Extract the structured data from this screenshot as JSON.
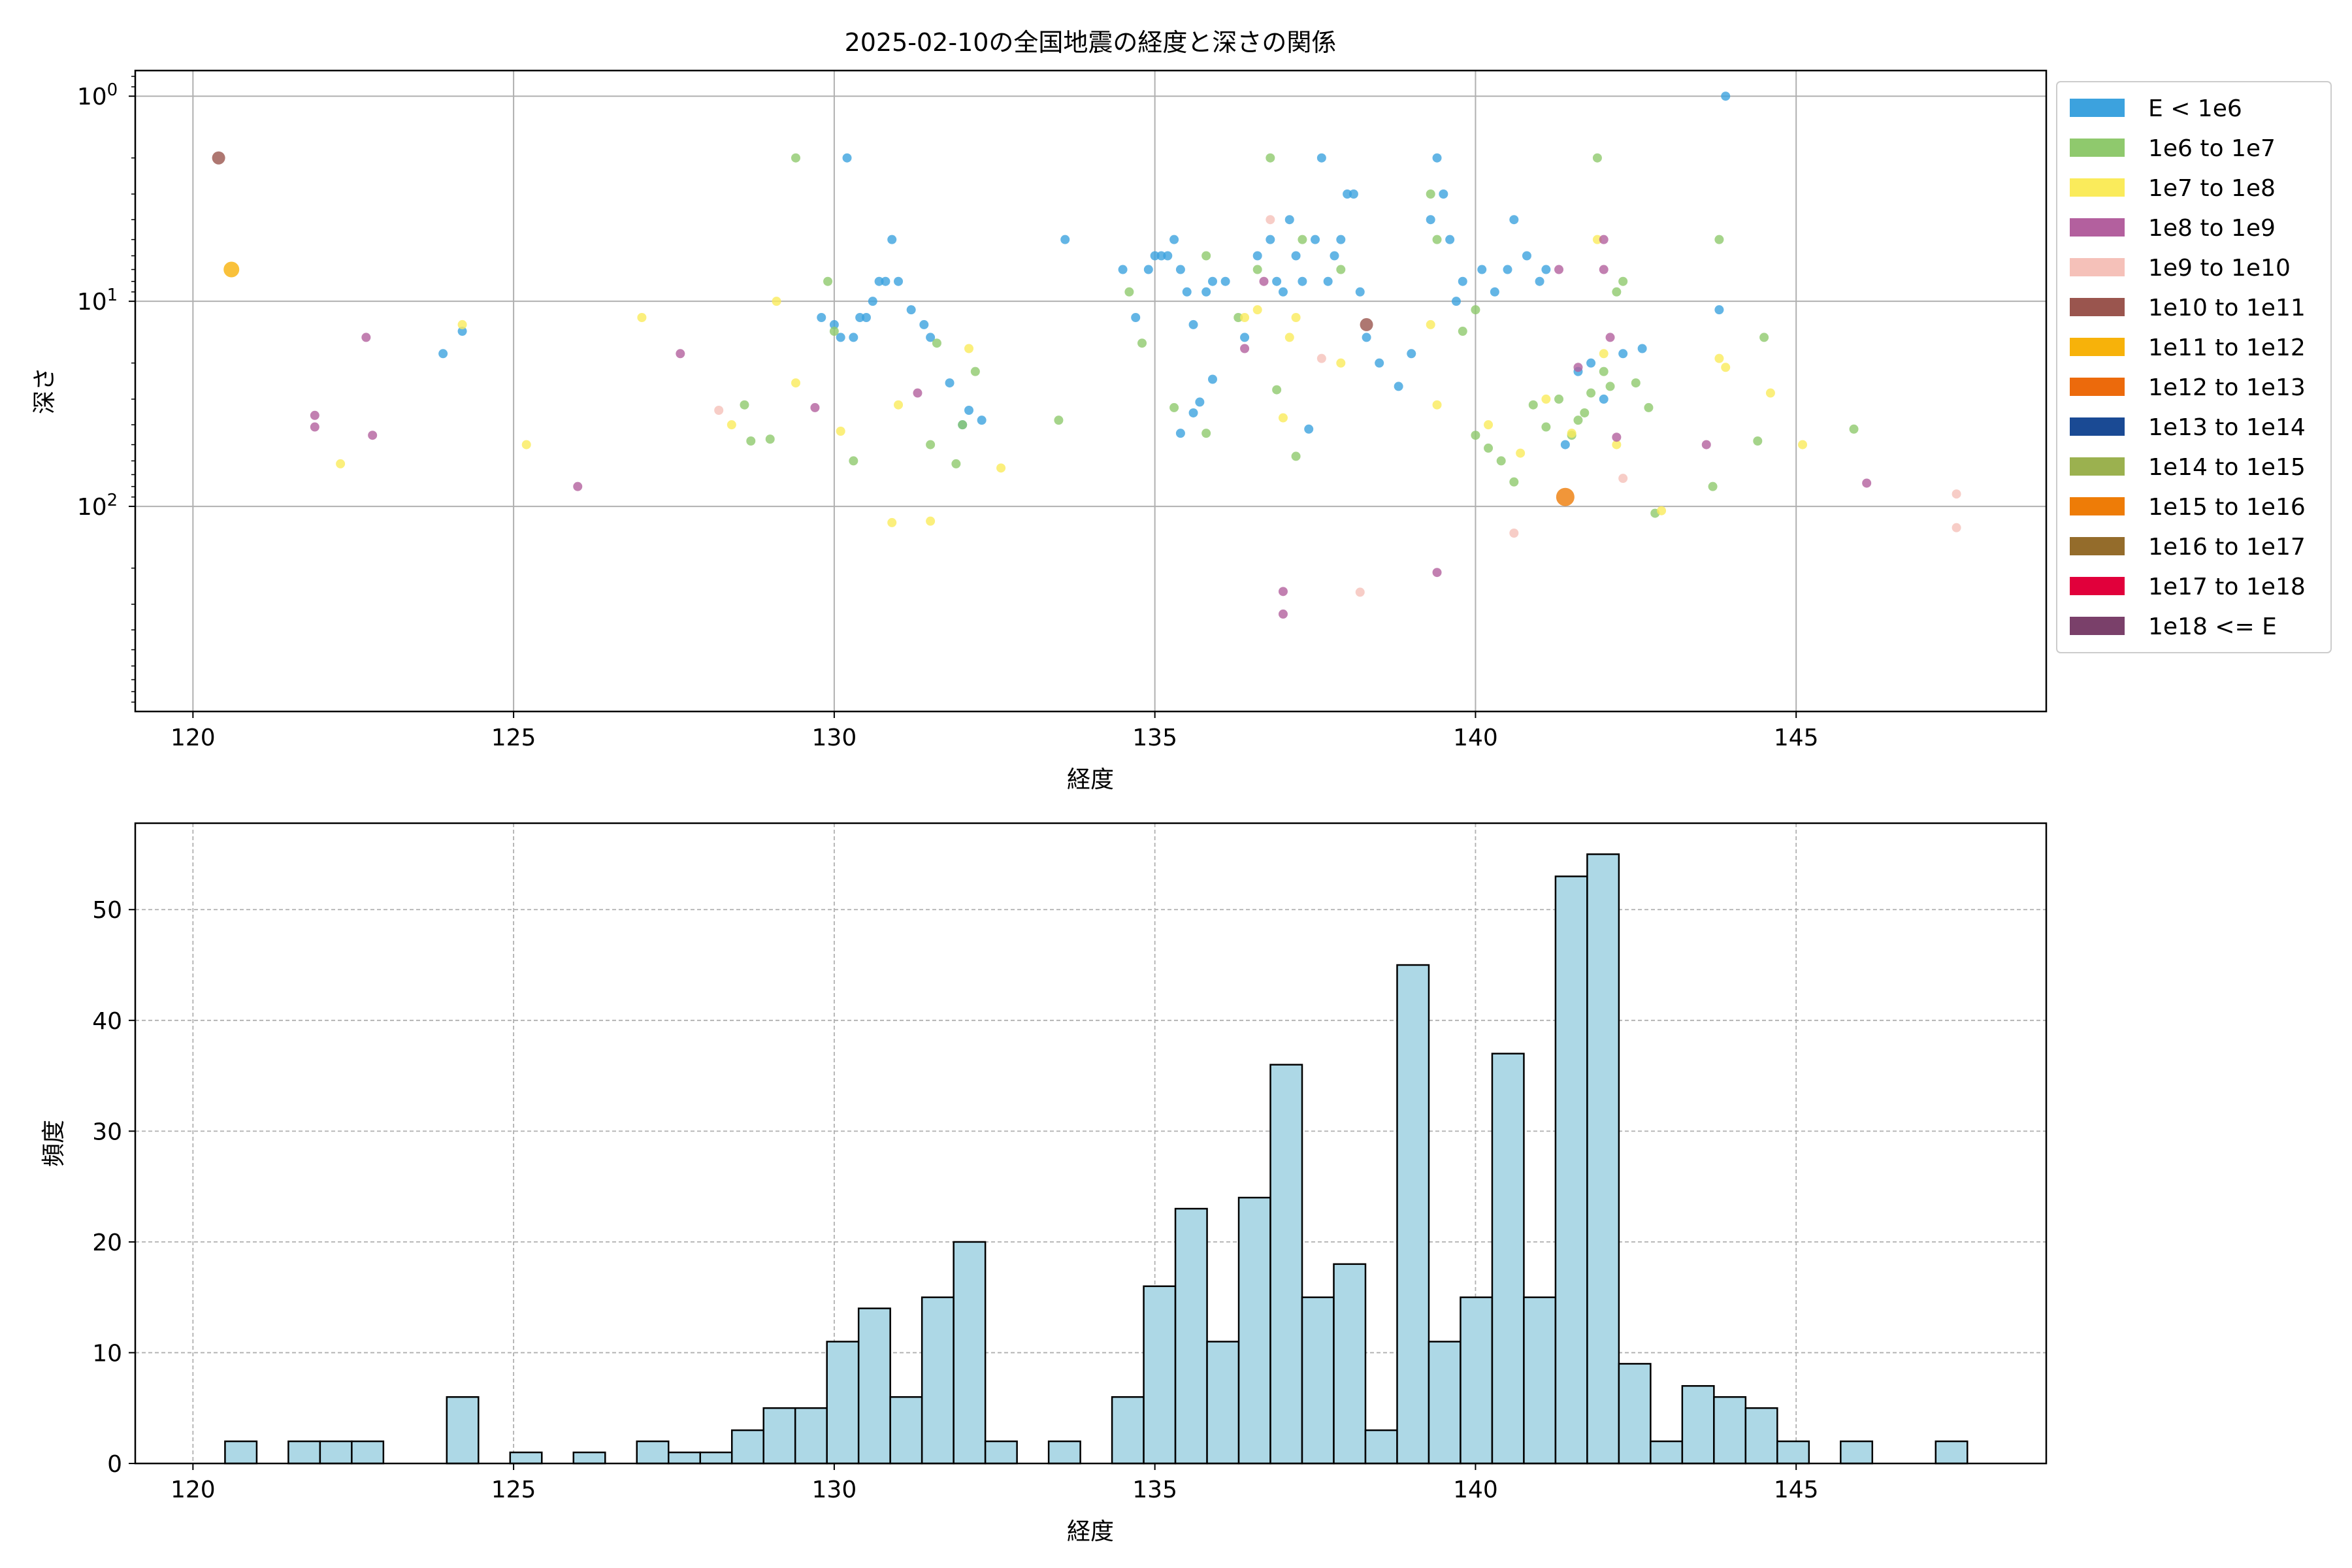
{
  "chart_data": [
    {
      "type": "scatter",
      "title": "2025-02-10の全国地震の経度と深さの関係",
      "xlabel": "経度",
      "ylabel": "深さ",
      "xlim": [
        119.1,
        148.9
      ],
      "ylim": [
        1000,
        0.75
      ],
      "yscale": "log",
      "y_inverted": true,
      "xticks": [
        120,
        125,
        130,
        135,
        140,
        145
      ],
      "xtick_labels": [
        "120",
        "125",
        "130",
        "135",
        "140",
        "145"
      ],
      "yticks": [
        1,
        10,
        100
      ],
      "ytick_labels": [
        "10^0",
        "10^1",
        "10^2"
      ],
      "grid": true,
      "legend_position": "outside-right",
      "legend": [
        {
          "label": "E < 1e6",
          "color": "#3ca2de"
        },
        {
          "label": "1e6 to 1e7",
          "color": "#8fc96d"
        },
        {
          "label": "1e7 to 1e8",
          "color": "#faeb5b"
        },
        {
          "label": "1e8 to 1e9",
          "color": "#b3609e"
        },
        {
          "label": "1e9 to 1e10",
          "color": "#f5c1b9"
        },
        {
          "label": "1e10 to 1e11",
          "color": "#9a554e"
        },
        {
          "label": "1e11 to 1e12",
          "color": "#f7b20a"
        },
        {
          "label": "1e12 to 1e13",
          "color": "#ec6a0c"
        },
        {
          "label": "1e13 to 1e14",
          "color": "#1a4a94"
        },
        {
          "label": "1e14 to 1e15",
          "color": "#9bb14f"
        },
        {
          "label": "1e15 to 1e16",
          "color": "#ee7c07"
        },
        {
          "label": "1e16 to 1e17",
          "color": "#946c2b"
        },
        {
          "label": "1e17 to 1e18",
          "color": "#e1003b"
        },
        {
          "label": "1e18 <= E",
          "color": "#7a406a"
        }
      ],
      "series": [
        {
          "name": "E < 1e6",
          "color": "#3ca2de",
          "points": [
            [
              123.9,
              18
            ],
            [
              124.2,
              14
            ],
            [
              129.8,
              12
            ],
            [
              130.0,
              13
            ],
            [
              130.1,
              15
            ],
            [
              130.2,
              2
            ],
            [
              130.3,
              15
            ],
            [
              130.4,
              12
            ],
            [
              130.5,
              12
            ],
            [
              130.6,
              10
            ],
            [
              130.7,
              8
            ],
            [
              130.8,
              8
            ],
            [
              130.9,
              5
            ],
            [
              131.0,
              8
            ],
            [
              131.2,
              11
            ],
            [
              131.4,
              13
            ],
            [
              131.5,
              15
            ],
            [
              131.8,
              25
            ],
            [
              132.0,
              40
            ],
            [
              132.1,
              34
            ],
            [
              132.3,
              38
            ],
            [
              133.6,
              5
            ],
            [
              134.5,
              7
            ],
            [
              134.7,
              12
            ],
            [
              134.9,
              7
            ],
            [
              135.0,
              6
            ],
            [
              135.1,
              6
            ],
            [
              135.2,
              6
            ],
            [
              135.3,
              5
            ],
            [
              135.4,
              7
            ],
            [
              135.5,
              9
            ],
            [
              135.6,
              13
            ],
            [
              135.8,
              9
            ],
            [
              135.9,
              24
            ],
            [
              135.4,
              44
            ],
            [
              135.6,
              35
            ],
            [
              135.7,
              31
            ],
            [
              135.9,
              8
            ],
            [
              136.1,
              8
            ],
            [
              136.4,
              15
            ],
            [
              136.6,
              6
            ],
            [
              136.8,
              5
            ],
            [
              136.9,
              8
            ],
            [
              137.0,
              9
            ],
            [
              137.1,
              4
            ],
            [
              137.2,
              6
            ],
            [
              137.3,
              8
            ],
            [
              137.4,
              42
            ],
            [
              137.5,
              5
            ],
            [
              137.6,
              2
            ],
            [
              137.7,
              8
            ],
            [
              137.8,
              6
            ],
            [
              137.9,
              5
            ],
            [
              138.0,
              3
            ],
            [
              138.1,
              3
            ],
            [
              138.2,
              9
            ],
            [
              138.3,
              15
            ],
            [
              138.5,
              20
            ],
            [
              138.8,
              26
            ],
            [
              139.0,
              18
            ],
            [
              139.3,
              4
            ],
            [
              139.4,
              2
            ],
            [
              139.5,
              3
            ],
            [
              139.6,
              5
            ],
            [
              139.7,
              10
            ],
            [
              139.8,
              8
            ],
            [
              140.1,
              7
            ],
            [
              140.3,
              9
            ],
            [
              140.5,
              7
            ],
            [
              140.6,
              4
            ],
            [
              140.8,
              6
            ],
            [
              141.0,
              8
            ],
            [
              141.1,
              7
            ],
            [
              141.4,
              50
            ],
            [
              141.6,
              22
            ],
            [
              141.8,
              20
            ],
            [
              142.0,
              30
            ],
            [
              142.3,
              18
            ],
            [
              142.6,
              17
            ],
            [
              143.8,
              11
            ],
            [
              143.9,
              1
            ]
          ]
        },
        {
          "name": "1e6 to 1e7",
          "color": "#8fc96d",
          "points": [
            [
              128.6,
              32
            ],
            [
              128.7,
              48
            ],
            [
              129.0,
              47
            ],
            [
              129.4,
              2
            ],
            [
              129.9,
              8
            ],
            [
              130.0,
              14
            ],
            [
              130.3,
              60
            ],
            [
              131.5,
              50
            ],
            [
              131.6,
              16
            ],
            [
              131.9,
              62
            ],
            [
              132.0,
              40
            ],
            [
              132.2,
              22
            ],
            [
              133.5,
              38
            ],
            [
              134.6,
              9
            ],
            [
              134.8,
              16
            ],
            [
              135.3,
              33
            ],
            [
              135.8,
              44
            ],
            [
              135.8,
              6
            ],
            [
              136.3,
              12
            ],
            [
              136.6,
              7
            ],
            [
              136.8,
              2
            ],
            [
              136.9,
              27
            ],
            [
              137.2,
              57
            ],
            [
              137.3,
              5
            ],
            [
              137.9,
              7
            ],
            [
              139.3,
              3
            ],
            [
              139.4,
              5
            ],
            [
              139.8,
              14
            ],
            [
              140.0,
              11
            ],
            [
              140.0,
              45
            ],
            [
              140.2,
              52
            ],
            [
              140.4,
              60
            ],
            [
              140.6,
              76
            ],
            [
              140.9,
              32
            ],
            [
              141.1,
              41
            ],
            [
              141.3,
              30
            ],
            [
              141.5,
              45
            ],
            [
              141.6,
              38
            ],
            [
              141.7,
              35
            ],
            [
              141.8,
              28
            ],
            [
              141.9,
              2
            ],
            [
              142.0,
              22
            ],
            [
              142.1,
              26
            ],
            [
              142.2,
              9
            ],
            [
              142.3,
              8
            ],
            [
              142.5,
              25
            ],
            [
              142.7,
              33
            ],
            [
              142.8,
              108
            ],
            [
              143.7,
              80
            ],
            [
              143.8,
              5
            ],
            [
              144.4,
              48
            ],
            [
              144.5,
              15
            ],
            [
              145.9,
              42
            ]
          ]
        },
        {
          "name": "1e7 to 1e8",
          "color": "#faeb5b",
          "points": [
            [
              122.3,
              62
            ],
            [
              124.2,
              13
            ],
            [
              125.2,
              50
            ],
            [
              127.0,
              12
            ],
            [
              128.4,
              40
            ],
            [
              129.1,
              10
            ],
            [
              129.4,
              25
            ],
            [
              130.1,
              43
            ],
            [
              130.9,
              120
            ],
            [
              131.0,
              32
            ],
            [
              131.5,
              118
            ],
            [
              132.1,
              17
            ],
            [
              132.6,
              65
            ],
            [
              136.4,
              12
            ],
            [
              136.6,
              11
            ],
            [
              137.0,
              37
            ],
            [
              137.1,
              15
            ],
            [
              137.2,
              12
            ],
            [
              137.9,
              20
            ],
            [
              139.3,
              13
            ],
            [
              139.4,
              32
            ],
            [
              140.2,
              40
            ],
            [
              140.7,
              55
            ],
            [
              141.1,
              30
            ],
            [
              141.5,
              44
            ],
            [
              141.9,
              5
            ],
            [
              142.0,
              18
            ],
            [
              142.2,
              50
            ],
            [
              142.9,
              105
            ],
            [
              143.8,
              19
            ],
            [
              143.9,
              21
            ],
            [
              144.6,
              28
            ],
            [
              145.1,
              50
            ]
          ]
        },
        {
          "name": "1e8 to 1e9",
          "color": "#b3609e",
          "points": [
            [
              121.9,
              36
            ],
            [
              121.9,
              41
            ],
            [
              122.7,
              15
            ],
            [
              122.8,
              45
            ],
            [
              126.0,
              80
            ],
            [
              127.6,
              18
            ],
            [
              129.7,
              33
            ],
            [
              131.3,
              28
            ],
            [
              136.4,
              17
            ],
            [
              136.7,
              8
            ],
            [
              137.0,
              260
            ],
            [
              137.0,
              335
            ],
            [
              139.4,
              210
            ],
            [
              141.3,
              7
            ],
            [
              141.6,
              21
            ],
            [
              142.0,
              5
            ],
            [
              142.0,
              7
            ],
            [
              142.1,
              15
            ],
            [
              142.2,
              46
            ],
            [
              143.6,
              50
            ],
            [
              146.1,
              77
            ]
          ]
        },
        {
          "name": "1e9 to 1e10",
          "color": "#f5c1b9",
          "points": [
            [
              128.2,
              34
            ],
            [
              136.8,
              4
            ],
            [
              137.6,
              19
            ],
            [
              138.2,
              262
            ],
            [
              140.6,
              135
            ],
            [
              142.3,
              73
            ],
            [
              147.5,
              87
            ],
            [
              147.5,
              127
            ]
          ]
        },
        {
          "name": "1e10 to 1e11",
          "color": "#9a554e",
          "points": [
            [
              120.4,
              2
            ],
            [
              138.3,
              13
            ]
          ]
        },
        {
          "name": "1e11 to 1e12",
          "color": "#f7b20a",
          "points": [
            [
              120.6,
              7
            ]
          ]
        },
        {
          "name": "1e15 to 1e16",
          "color": "#ee7c07",
          "points": [
            [
              141.4,
              90
            ]
          ]
        }
      ]
    },
    {
      "type": "bar",
      "title": "",
      "xlabel": "経度",
      "ylabel": "頻度",
      "xlim": [
        119.1,
        148.9
      ],
      "ylim": [
        0,
        57.8
      ],
      "xticks": [
        120,
        125,
        130,
        135,
        140,
        145
      ],
      "xtick_labels": [
        "120",
        "125",
        "130",
        "135",
        "140",
        "145"
      ],
      "yticks": [
        0,
        10,
        20,
        30,
        40,
        50
      ],
      "ytick_labels": [
        "0",
        "10",
        "20",
        "30",
        "40",
        "50"
      ],
      "grid": true,
      "bar_color": "#add8e6",
      "bin_start": 120.5,
      "bin_width": 0.494,
      "values": [
        2,
        0,
        2,
        2,
        2,
        0,
        0,
        6,
        0,
        1,
        0,
        1,
        0,
        2,
        1,
        1,
        3,
        5,
        5,
        11,
        14,
        6,
        15,
        20,
        2,
        0,
        2,
        0,
        6,
        16,
        23,
        11,
        24,
        36,
        15,
        18,
        3,
        45,
        11,
        15,
        37,
        15,
        53,
        55,
        9,
        2,
        7,
        6,
        5,
        2,
        0,
        2,
        0,
        0,
        2
      ]
    }
  ]
}
